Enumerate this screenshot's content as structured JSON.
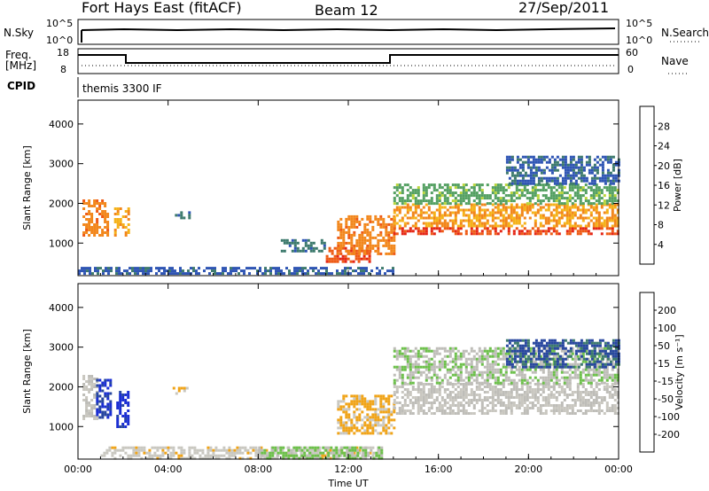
{
  "header": {
    "station": "Fort Hays East (fitACF)",
    "beam": "Beam 12",
    "date": "27/Sep/2011"
  },
  "top_panels": {
    "nsky_label": "N.Sky",
    "nsky_ticks": [
      "10^5",
      "10^0"
    ],
    "nsearch_label": "N.Search",
    "nsearch_ticks": [
      "10^5",
      "10^0"
    ],
    "freq_label_1": "Freq.",
    "freq_label_2": "[MHz]",
    "freq_ticks": [
      "18",
      "8"
    ],
    "nave_label": "Nave",
    "nave_ticks": [
      "60",
      "0"
    ],
    "cpid_label": "CPID",
    "cpid_value": "themis 3300 IF"
  },
  "colors": {
    "power_scale": [
      "#2233ee",
      "#2f55b4",
      "#3d7a6d",
      "#54a062",
      "#b9d53a",
      "#f5b21a",
      "#f2871c",
      "#ee5a15",
      "#e52616"
    ],
    "velocity_scale": [
      "#1b2fd3",
      "#28479f",
      "#3d7a6e",
      "#6cc04a",
      "#bebdb8",
      "#c9c7c0",
      "#f0a418",
      "#f2761a",
      "#ee4c12",
      "#e91d10"
    ]
  },
  "chart_data": [
    {
      "type": "heatmap",
      "title": "",
      "xlabel": "",
      "ylabel": "Slant Range [km]",
      "x_ticks": [
        "00:00",
        "04:00",
        "08:00",
        "12:00",
        "16:00",
        "20:00",
        "00:00"
      ],
      "y_ticks": [
        "1000",
        "2000",
        "3000",
        "4000"
      ],
      "xlim_hours": [
        0,
        24
      ],
      "ylim_km": [
        180,
        4600
      ],
      "colorbar": {
        "label": "Power [dB]",
        "ticks": [
          "4",
          "8",
          "12",
          "16",
          "20",
          "24",
          "28"
        ],
        "range": [
          0,
          30
        ]
      },
      "bands": [
        {
          "t0": 0.2,
          "t1": 1.3,
          "r0": 1200,
          "r1": 2100,
          "level": 22
        },
        {
          "t0": 1.6,
          "t1": 2.2,
          "r0": 1200,
          "r1": 1900,
          "level": 20
        },
        {
          "t0": 4.3,
          "t1": 5.0,
          "r0": 1600,
          "r1": 1800,
          "level": 8
        },
        {
          "t0": 9.0,
          "t1": 11.0,
          "r0": 800,
          "r1": 1100,
          "level": 8
        },
        {
          "t0": 11.0,
          "t1": 13.0,
          "r0": 500,
          "r1": 900,
          "level": 26
        },
        {
          "t0": 11.5,
          "t1": 14.0,
          "r0": 700,
          "r1": 1700,
          "level": 22
        },
        {
          "t0": 14.0,
          "t1": 24.0,
          "r0": 1200,
          "r1": 1400,
          "level": 27
        },
        {
          "t0": 14.0,
          "t1": 24.0,
          "r0": 1400,
          "r1": 2000,
          "level": 20
        },
        {
          "t0": 14.0,
          "t1": 24.0,
          "r0": 2000,
          "r1": 2500,
          "level": 12
        },
        {
          "t0": 19.0,
          "t1": 24.0,
          "r0": 2500,
          "r1": 3200,
          "level": 6
        },
        {
          "t0": 0.0,
          "t1": 14.0,
          "r0": 200,
          "r1": 400,
          "level": 6
        }
      ]
    },
    {
      "type": "heatmap",
      "title": "",
      "xlabel": "Time UT",
      "ylabel": "Slant Range [km]",
      "x_ticks": [
        "00:00",
        "04:00",
        "08:00",
        "12:00",
        "16:00",
        "20:00",
        "00:00"
      ],
      "y_ticks": [
        "1000",
        "2000",
        "3000",
        "4000"
      ],
      "xlim_hours": [
        0,
        24
      ],
      "ylim_km": [
        180,
        4600
      ],
      "colorbar": {
        "label": "Velocity [m s⁻¹]",
        "ticks": [
          "200",
          "100",
          "50",
          "15",
          "-15",
          "-50",
          "-100",
          "-200"
        ],
        "range": [
          -250,
          250
        ]
      },
      "bands": [
        {
          "t0": 0.2,
          "t1": 0.8,
          "r0": 1200,
          "r1": 2300,
          "level": 0
        },
        {
          "t0": 0.8,
          "t1": 1.4,
          "r0": 1200,
          "r1": 2200,
          "level": -200
        },
        {
          "t0": 1.7,
          "t1": 2.2,
          "r0": 1000,
          "r1": 1900,
          "level": -220
        },
        {
          "t0": 4.2,
          "t1": 4.8,
          "r0": 1800,
          "r1": 2000,
          "level": 60
        },
        {
          "t0": 1.0,
          "t1": 13.5,
          "r0": 200,
          "r1": 500,
          "level": 30
        },
        {
          "t0": 8.0,
          "t1": 13.5,
          "r0": 200,
          "r1": 500,
          "level": -60
        },
        {
          "t0": 11.5,
          "t1": 14.0,
          "r0": 800,
          "r1": 1800,
          "level": 60
        },
        {
          "t0": 14.0,
          "t1": 24.0,
          "r0": 1300,
          "r1": 2100,
          "level": 0
        },
        {
          "t0": 14.0,
          "t1": 24.0,
          "r0": 2100,
          "r1": 3000,
          "level": -40
        },
        {
          "t0": 19.0,
          "t1": 24.0,
          "r0": 2500,
          "r1": 3200,
          "level": -160
        }
      ]
    }
  ]
}
